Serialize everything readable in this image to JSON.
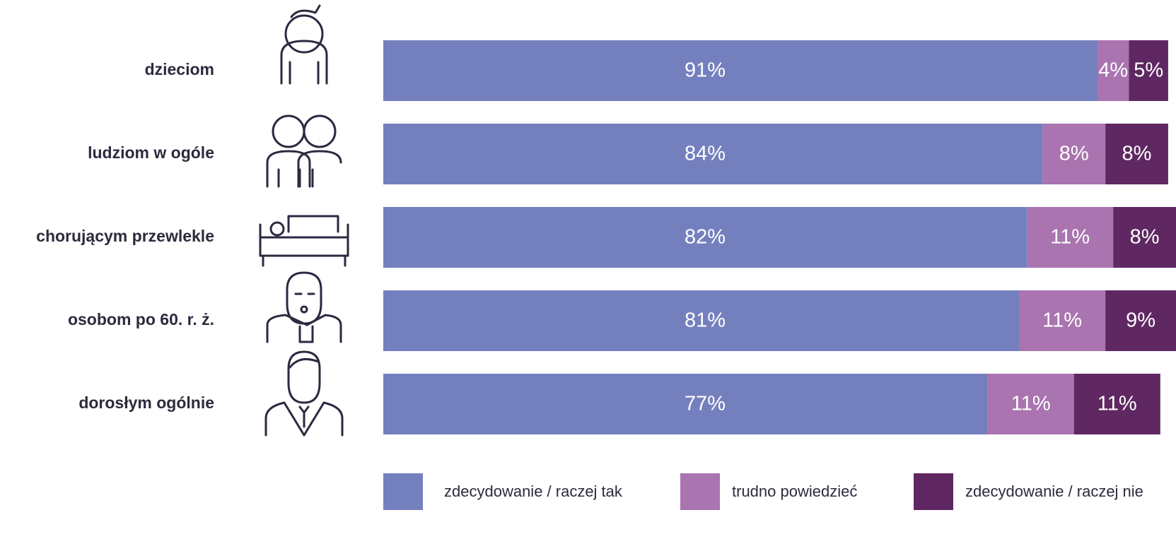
{
  "chart_data": {
    "type": "stacked_bar_horizontal",
    "categories": [
      "dzieciom",
      "ludziom w ogóle",
      "chorującym przewlekle",
      "osobom po 60. r. ż.",
      "dorosłym ogólnie"
    ],
    "series": [
      {
        "name": "zdecydowanie / raczej tak",
        "color": "#7480be",
        "values": [
          91,
          84,
          82,
          81,
          77
        ],
        "value_labels": [
          "91%",
          "84%",
          "82%",
          "81%",
          "77%"
        ]
      },
      {
        "name": "trudno powiedzieć",
        "color": "#a974b0",
        "values": [
          4,
          8,
          11,
          11,
          11
        ],
        "value_labels": [
          "4%",
          "8%",
          "11%",
          "11%",
          "11%"
        ]
      },
      {
        "name": "zdecydowanie / raczej nie",
        "color": "#5f2862",
        "values": [
          5,
          8,
          8,
          9,
          11
        ],
        "value_labels": [
          "5%",
          "8%",
          "8%",
          "9%",
          "11%"
        ]
      }
    ],
    "legend": "bottom"
  }
}
